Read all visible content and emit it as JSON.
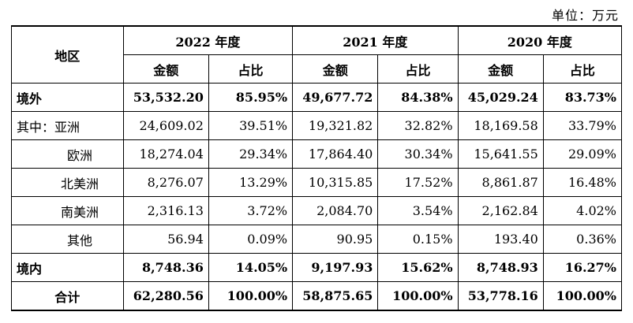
{
  "unit_label": "单位：万元",
  "header": {
    "region": "地区",
    "years": [
      "2022 年度",
      "2021 年度",
      "2020 年度"
    ],
    "amount": "金额",
    "share": "占比"
  },
  "rows": [
    {
      "label": "境外",
      "bold": true,
      "values": [
        "53,532.20",
        "85.95%",
        "49,677.72",
        "84.38%",
        "45,029.24",
        "83.73%"
      ]
    },
    {
      "label": "其中：亚洲",
      "bold": false,
      "values": [
        "24,609.02",
        "39.51%",
        "19,321.82",
        "32.82%",
        "18,169.58",
        "33.79%"
      ]
    },
    {
      "label": "欧洲",
      "bold": false,
      "values": [
        "18,274.04",
        "29.34%",
        "17,864.40",
        "30.34%",
        "15,641.55",
        "29.09%"
      ]
    },
    {
      "label": "北美洲",
      "bold": false,
      "values": [
        "8,276.07",
        "13.29%",
        "10,315.85",
        "17.52%",
        "8,861.87",
        "16.48%"
      ]
    },
    {
      "label": "南美洲",
      "bold": false,
      "values": [
        "2,316.13",
        "3.72%",
        "2,084.70",
        "3.54%",
        "2,162.84",
        "4.02%"
      ]
    },
    {
      "label": "其他",
      "bold": false,
      "values": [
        "56.94",
        "0.09%",
        "90.95",
        "0.15%",
        "193.40",
        "0.36%"
      ]
    },
    {
      "label": "境内",
      "bold": true,
      "values": [
        "8,748.36",
        "14.05%",
        "9,197.93",
        "15.62%",
        "8,748.93",
        "16.27%"
      ]
    },
    {
      "label": "合计",
      "bold": true,
      "values": [
        "62,280.56",
        "100.00%",
        "58,875.65",
        "100.00%",
        "53,778.16",
        "100.00%"
      ]
    }
  ]
}
